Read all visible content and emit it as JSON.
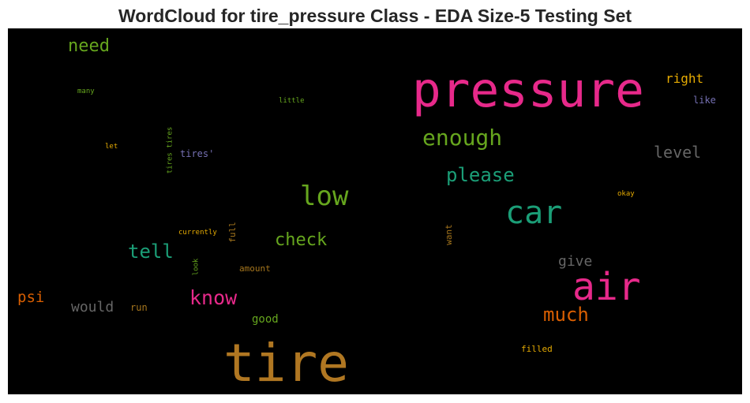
{
  "title": "WordCloud for tire_pressure Class - EDA Size-5 Testing Set",
  "chart_data": {
    "type": "wordcloud",
    "background": "#000000",
    "words": [
      {
        "text": "pressure",
        "color": "#e7298a"
      },
      {
        "text": "tire",
        "color": "#b07722"
      },
      {
        "text": "air",
        "color": "#e7298a"
      },
      {
        "text": "car",
        "color": "#1b9e77"
      },
      {
        "text": "low",
        "color": "#66a61e"
      },
      {
        "text": "enough",
        "color": "#66a61e"
      },
      {
        "text": "please",
        "color": "#1b9e77"
      },
      {
        "text": "know",
        "color": "#e7298a"
      },
      {
        "text": "much",
        "color": "#d95f02"
      },
      {
        "text": "tell",
        "color": "#1b9e77"
      },
      {
        "text": "check",
        "color": "#66a61e"
      },
      {
        "text": "need",
        "color": "#66a61e"
      },
      {
        "text": "level",
        "color": "#666666"
      },
      {
        "text": "psi",
        "color": "#d95f02"
      },
      {
        "text": "would",
        "color": "#666666"
      },
      {
        "text": "give",
        "color": "#666666"
      },
      {
        "text": "right",
        "color": "#e6ab02"
      },
      {
        "text": "good",
        "color": "#66a61e"
      },
      {
        "text": "like",
        "color": "#7570b3"
      },
      {
        "text": "tires'",
        "color": "#7570b3"
      },
      {
        "text": "run",
        "color": "#a6761d"
      },
      {
        "text": "amount",
        "color": "#a6761d"
      },
      {
        "text": "filled",
        "color": "#e6ab02"
      },
      {
        "text": "currently",
        "color": "#e6ab02"
      },
      {
        "text": "okay",
        "color": "#e6ab02"
      },
      {
        "text": "little",
        "color": "#66a61e"
      },
      {
        "text": "many",
        "color": "#66a61e"
      },
      {
        "text": "let",
        "color": "#e6ab02"
      },
      {
        "text": "full",
        "color": "#a6761d"
      },
      {
        "text": "want",
        "color": "#a6761d"
      },
      {
        "text": "look",
        "color": "#66a61e"
      },
      {
        "text": "tires tires",
        "color": "#66a61e"
      }
    ]
  }
}
